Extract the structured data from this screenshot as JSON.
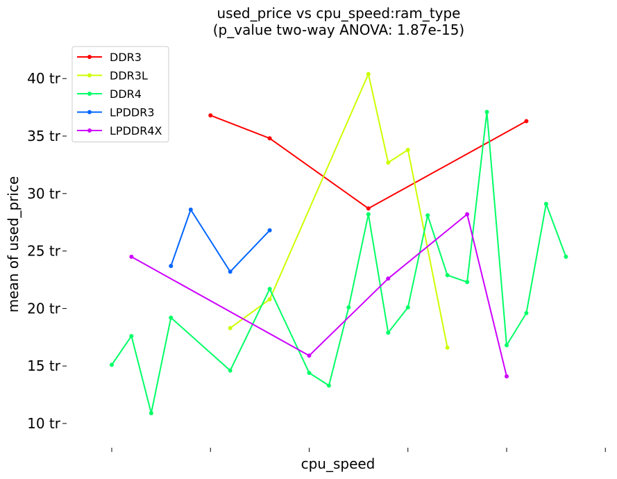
{
  "chart_data": {
    "type": "line",
    "title_line1": "used_price vs cpu_speed:ram_type",
    "title_line2": "(p_value two-way ANOVA: 1.87e-15)",
    "xlabel": "cpu_speed",
    "ylabel": "mean of used_price",
    "ylim": [
      8,
      43
    ],
    "xlim": [
      -0.5,
      24.5
    ],
    "yticks": [
      {
        "value": 10,
        "label": "10 tr"
      },
      {
        "value": 15,
        "label": "15 tr"
      },
      {
        "value": 20,
        "label": "20 tr"
      },
      {
        "value": 25,
        "label": "25 tr"
      },
      {
        "value": 30,
        "label": "30 tr"
      },
      {
        "value": 35,
        "label": "35 tr"
      },
      {
        "value": 40,
        "label": "40 tr"
      }
    ],
    "xticks": [
      0,
      5,
      10,
      15,
      20,
      25
    ],
    "grid": false,
    "legend_position": "top-left",
    "series": [
      {
        "name": "DDR3",
        "color": "#ff0000",
        "points": [
          [
            5,
            36.8
          ],
          [
            8,
            34.8
          ],
          [
            13,
            28.7
          ],
          [
            21,
            36.3
          ]
        ]
      },
      {
        "name": "DDR3L",
        "color": "#ccff00",
        "points": [
          [
            6,
            18.3
          ],
          [
            8,
            20.8
          ],
          [
            13,
            40.4
          ],
          [
            14,
            32.7
          ],
          [
            15,
            33.8
          ],
          [
            17,
            16.6
          ]
        ]
      },
      {
        "name": "DDR4",
        "color": "#00ff66",
        "points": [
          [
            0,
            15.1
          ],
          [
            1,
            17.6
          ],
          [
            2,
            10.9
          ],
          [
            3,
            19.2
          ],
          [
            6,
            14.6
          ],
          [
            8,
            21.7
          ],
          [
            10,
            14.4
          ],
          [
            11,
            13.3
          ],
          [
            12,
            20.1
          ],
          [
            13,
            28.2
          ],
          [
            14,
            17.9
          ],
          [
            15,
            20.1
          ],
          [
            16,
            28.1
          ],
          [
            17,
            22.9
          ],
          [
            18,
            22.3
          ],
          [
            19,
            37.1
          ],
          [
            20,
            16.8
          ],
          [
            21,
            19.6
          ],
          [
            22,
            29.1
          ],
          [
            23,
            24.5
          ]
        ]
      },
      {
        "name": "LPDDR3",
        "color": "#0066ff",
        "points": [
          [
            3,
            23.7
          ],
          [
            4,
            28.6
          ],
          [
            6,
            23.2
          ],
          [
            8,
            26.8
          ]
        ]
      },
      {
        "name": "LPDDR4X",
        "color": "#cc00ff",
        "points": [
          [
            1,
            24.5
          ],
          [
            10,
            15.9
          ],
          [
            14,
            22.6
          ],
          [
            18,
            28.2
          ],
          [
            20,
            14.1
          ]
        ]
      }
    ]
  }
}
